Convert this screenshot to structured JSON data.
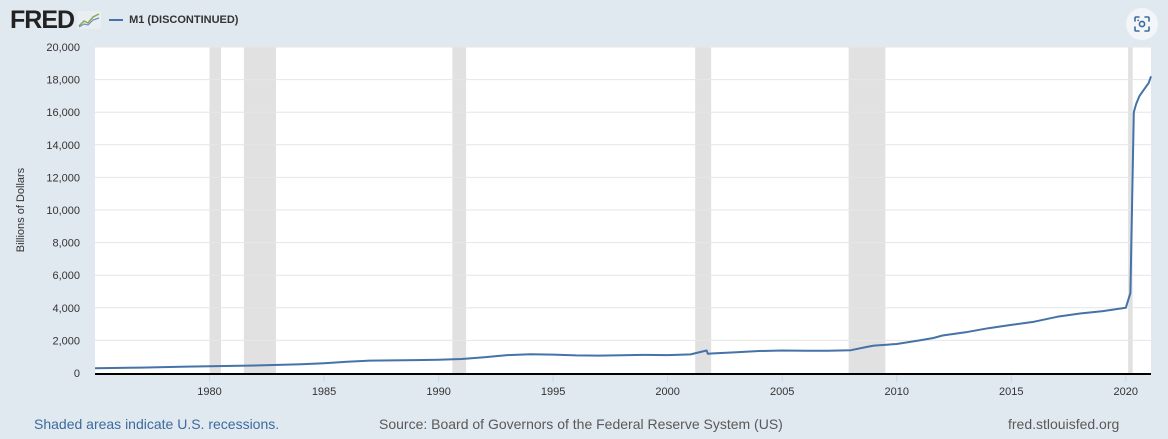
{
  "header": {
    "logo_text": "FRED",
    "logo_icon": "chart-sparkline-icon",
    "series_label": "M1 (DISCONTINUED)",
    "series_color": "#4572a7",
    "snapshot_icon": "camera-focus-icon"
  },
  "footer": {
    "recession_note": "Shaded areas indicate U.S. recessions.",
    "source": "Source: Board of Governors of the Federal Reserve System (US)",
    "site": "fred.stlouisfed.org"
  },
  "colors": {
    "background": "#e1e9f0",
    "plot_background": "#ffffff",
    "line": "#4572a7",
    "recession_shade": "#e1e1e1",
    "link": "#3c6a9e"
  },
  "chart_data": {
    "type": "line",
    "title": "M1 (DISCONTINUED)",
    "xlabel": "",
    "ylabel": "Billions of Dollars",
    "xlim": [
      1975,
      2021.1
    ],
    "ylim": [
      0,
      20000
    ],
    "grid": true,
    "legend_position": "top-left",
    "x_ticks": [
      "1980",
      "1985",
      "1990",
      "1995",
      "2000",
      "2005",
      "2010",
      "2015",
      "2020"
    ],
    "y_ticks": [
      "0",
      "2,000",
      "4,000",
      "6,000",
      "8,000",
      "10,000",
      "12,000",
      "14,000",
      "16,000",
      "18,000",
      "20,000"
    ],
    "recessions": [
      [
        1980.0,
        1980.5
      ],
      [
        1981.5,
        1982.9
      ],
      [
        1990.6,
        1991.2
      ],
      [
        2001.2,
        2001.9
      ],
      [
        2007.9,
        2009.5
      ],
      [
        2020.1,
        2020.3
      ]
    ],
    "series": [
      {
        "name": "M1 (DISCONTINUED)",
        "x": [
          1975.0,
          1977.0,
          1979.0,
          1980.0,
          1982.0,
          1984.0,
          1985.0,
          1986.0,
          1987.0,
          1989.0,
          1990.0,
          1991.0,
          1992.0,
          1993.0,
          1994.0,
          1995.0,
          1996.0,
          1997.0,
          1998.0,
          1999.0,
          2000.0,
          2001.0,
          2001.7,
          2001.75,
          2002.0,
          2003.0,
          2004.0,
          2005.0,
          2006.0,
          2007.0,
          2008.0,
          2008.7,
          2009.0,
          2010.0,
          2011.0,
          2011.6,
          2012.0,
          2013.0,
          2014.0,
          2015.0,
          2016.0,
          2017.0,
          2018.0,
          2019.0,
          2020.0,
          2020.2,
          2020.35,
          2020.45,
          2020.6,
          2021.0,
          2021.1
        ],
        "values": [
          290,
          330,
          390,
          410,
          460,
          540,
          600,
          690,
          760,
          790,
          810,
          860,
          970,
          1100,
          1150,
          1130,
          1080,
          1070,
          1090,
          1110,
          1100,
          1140,
          1380,
          1180,
          1200,
          1270,
          1350,
          1380,
          1370,
          1370,
          1400,
          1600,
          1680,
          1780,
          2000,
          2150,
          2300,
          2500,
          2750,
          2950,
          3150,
          3450,
          3650,
          3800,
          4000,
          4900,
          16000,
          16500,
          17000,
          17800,
          18200
        ]
      }
    ]
  }
}
